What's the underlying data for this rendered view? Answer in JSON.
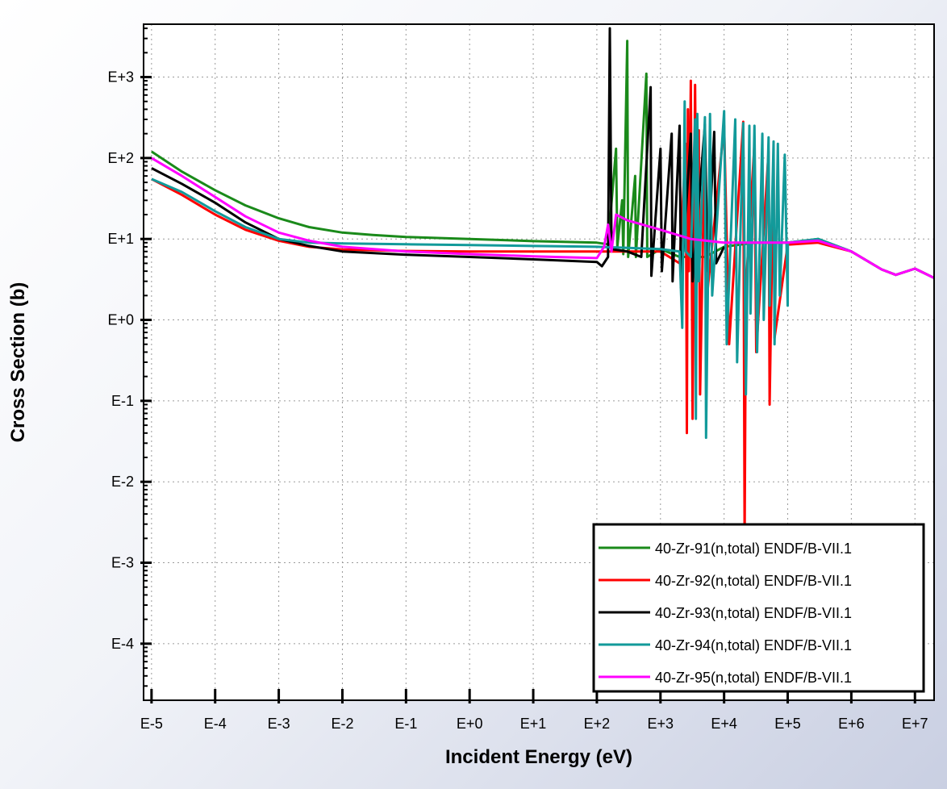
{
  "chart_data": {
    "type": "line",
    "xlabel": "Incident Energy (eV)",
    "ylabel": "Cross Section (b)",
    "x_scale": "log",
    "y_scale": "log",
    "xlim": [
      7.5e-06,
      20000000
    ],
    "ylim": [
      2e-05,
      4500
    ],
    "grid": true,
    "legend_position": "bottom-right",
    "x_ticks": [
      "E-5",
      "E-4",
      "E-3",
      "E-2",
      "E-1",
      "E+0",
      "E+1",
      "E+2",
      "E+3",
      "E+4",
      "E+5",
      "E+6",
      "E+7"
    ],
    "y_ticks": [
      "E-4",
      "E-3",
      "E-2",
      "E-1",
      "E+0",
      "E+1",
      "E+2",
      "E+3"
    ],
    "series": [
      {
        "name": "40-Zr-91(n,total) ENDF/B-VII.1",
        "color": "#1a8a1a",
        "points": [
          [
            1e-05,
            120
          ],
          [
            3e-05,
            68
          ],
          [
            0.0001,
            40
          ],
          [
            0.0003,
            26
          ],
          [
            0.001,
            18
          ],
          [
            0.003,
            14
          ],
          [
            0.01,
            12
          ],
          [
            0.03,
            11.2
          ],
          [
            0.1,
            10.6
          ],
          [
            1,
            10
          ],
          [
            10,
            9.4
          ],
          [
            100,
            9
          ],
          [
            150,
            8.6
          ],
          [
            200,
            130
          ],
          [
            210,
            8
          ],
          [
            250,
            30
          ],
          [
            260,
            6.5
          ],
          [
            300,
            2800
          ],
          [
            310,
            6
          ],
          [
            400,
            60
          ],
          [
            410,
            6
          ],
          [
            600,
            1100
          ],
          [
            620,
            6
          ],
          [
            1000,
            7.5
          ],
          [
            2000,
            6
          ],
          [
            3000,
            6
          ],
          [
            5000,
            6
          ],
          [
            10000,
            8
          ],
          [
            30000,
            9
          ],
          [
            100000,
            9
          ],
          [
            300000,
            10
          ],
          [
            1000000,
            7
          ],
          [
            3000000,
            4.2
          ],
          [
            5000000,
            3.6
          ],
          [
            10000000,
            4.3
          ],
          [
            20000000,
            3.3
          ]
        ]
      },
      {
        "name": "40-Zr-92(n,total) ENDF/B-VII.1",
        "color": "#ff0000",
        "points": [
          [
            1e-05,
            55
          ],
          [
            3e-05,
            35
          ],
          [
            0.0001,
            20
          ],
          [
            0.0003,
            13
          ],
          [
            0.001,
            9.5
          ],
          [
            0.003,
            8
          ],
          [
            0.01,
            7.4
          ],
          [
            0.1,
            7.1
          ],
          [
            1,
            7
          ],
          [
            10,
            7
          ],
          [
            100,
            7
          ],
          [
            200,
            7
          ],
          [
            1000,
            7
          ],
          [
            2000,
            5
          ],
          [
            2500,
            150
          ],
          [
            2600,
            0.04
          ],
          [
            2700,
            400
          ],
          [
            2800,
            4
          ],
          [
            3000,
            900
          ],
          [
            3200,
            0.06
          ],
          [
            3500,
            800
          ],
          [
            3700,
            3
          ],
          [
            4000,
            220
          ],
          [
            4200,
            0.12
          ],
          [
            5000,
            210
          ],
          [
            5200,
            1.5
          ],
          [
            10000,
            250
          ],
          [
            12000,
            0.5
          ],
          [
            20000,
            280
          ],
          [
            21000,
            0.0018
          ],
          [
            22000,
            2.5
          ],
          [
            30000,
            150
          ],
          [
            32000,
            0.4
          ],
          [
            50000,
            120
          ],
          [
            52000,
            0.09
          ],
          [
            60000,
            100
          ],
          [
            62000,
            0.6
          ],
          [
            100000,
            8.5
          ],
          [
            300000,
            9
          ],
          [
            1000000,
            7
          ],
          [
            3000000,
            4.2
          ],
          [
            5000000,
            3.6
          ],
          [
            10000000,
            4.3
          ],
          [
            20000000,
            3.3
          ]
        ]
      },
      {
        "name": "40-Zr-93(n,total) ENDF/B-VII.1",
        "color": "#000000",
        "points": [
          [
            1e-05,
            75
          ],
          [
            3e-05,
            48
          ],
          [
            0.0001,
            28
          ],
          [
            0.0003,
            16
          ],
          [
            0.001,
            10
          ],
          [
            0.003,
            8.2
          ],
          [
            0.01,
            7
          ],
          [
            0.1,
            6.4
          ],
          [
            1,
            6
          ],
          [
            10,
            5.6
          ],
          [
            100,
            5.2
          ],
          [
            120,
            4.6
          ],
          [
            150,
            6
          ],
          [
            160,
            4000
          ],
          [
            170,
            7.5
          ],
          [
            300,
            7
          ],
          [
            500,
            6
          ],
          [
            700,
            750
          ],
          [
            720,
            3.5
          ],
          [
            1000,
            130
          ],
          [
            1050,
            4
          ],
          [
            1500,
            200
          ],
          [
            1550,
            3
          ],
          [
            2000,
            250
          ],
          [
            2100,
            2.5
          ],
          [
            3000,
            200
          ],
          [
            3200,
            3
          ],
          [
            5000,
            260
          ],
          [
            5500,
            4
          ],
          [
            7000,
            210
          ],
          [
            7500,
            5
          ],
          [
            10000,
            8
          ]
        ]
      },
      {
        "name": "40-Zr-94(n,total) ENDF/B-VII.1",
        "color": "#129a9a",
        "points": [
          [
            1e-05,
            55
          ],
          [
            3e-05,
            38
          ],
          [
            0.0001,
            22
          ],
          [
            0.0003,
            14
          ],
          [
            0.001,
            10
          ],
          [
            0.003,
            9
          ],
          [
            0.01,
            8.8
          ],
          [
            0.1,
            8.6
          ],
          [
            1,
            8.4
          ],
          [
            10,
            8.2
          ],
          [
            100,
            8
          ],
          [
            1000,
            7.5
          ],
          [
            2000,
            7
          ],
          [
            2200,
            0.8
          ],
          [
            2400,
            500
          ],
          [
            2500,
            7
          ],
          [
            3000,
            6
          ],
          [
            3500,
            300
          ],
          [
            3600,
            0.06
          ],
          [
            3800,
            350
          ],
          [
            4000,
            3
          ],
          [
            5000,
            320
          ],
          [
            5200,
            0.035
          ],
          [
            6000,
            350
          ],
          [
            6500,
            2
          ],
          [
            10000,
            380
          ],
          [
            11000,
            0.5
          ],
          [
            15000,
            300
          ],
          [
            16000,
            0.3
          ],
          [
            20000,
            270
          ],
          [
            22000,
            0.12
          ],
          [
            25000,
            250
          ],
          [
            26000,
            1.2
          ],
          [
            30000,
            250
          ],
          [
            33000,
            0.4
          ],
          [
            40000,
            200
          ],
          [
            42000,
            1
          ],
          [
            50000,
            180
          ],
          [
            52000,
            1.5
          ],
          [
            60000,
            160
          ],
          [
            62000,
            0.5
          ],
          [
            70000,
            150
          ],
          [
            75000,
            2
          ],
          [
            90000,
            110
          ],
          [
            100000,
            1.5
          ],
          [
            100500,
            9
          ],
          [
            300000,
            10
          ],
          [
            1000000,
            7
          ],
          [
            3000000,
            4.2
          ],
          [
            5000000,
            3.6
          ],
          [
            10000000,
            4.3
          ],
          [
            20000000,
            3.3
          ]
        ]
      },
      {
        "name": "40-Zr-95(n,total) ENDF/B-VII.1",
        "color": "#ff00ff",
        "points": [
          [
            1e-05,
            100
          ],
          [
            3e-05,
            60
          ],
          [
            0.0001,
            33
          ],
          [
            0.0003,
            19
          ],
          [
            0.001,
            12
          ],
          [
            0.003,
            9.5
          ],
          [
            0.01,
            8
          ],
          [
            0.1,
            7
          ],
          [
            1,
            6.5
          ],
          [
            10,
            6.1
          ],
          [
            100,
            5.8
          ],
          [
            130,
            8
          ],
          [
            150,
            15
          ],
          [
            170,
            7
          ],
          [
            200,
            20
          ],
          [
            300,
            17
          ],
          [
            1000,
            13
          ],
          [
            3000,
            10
          ],
          [
            10000,
            9
          ],
          [
            30000,
            9
          ],
          [
            100000,
            9
          ],
          [
            300000,
            9.5
          ],
          [
            1000000,
            7
          ],
          [
            3000000,
            4.2
          ],
          [
            5000000,
            3.6
          ],
          [
            10000000,
            4.3
          ],
          [
            20000000,
            3.3
          ]
        ]
      }
    ]
  }
}
